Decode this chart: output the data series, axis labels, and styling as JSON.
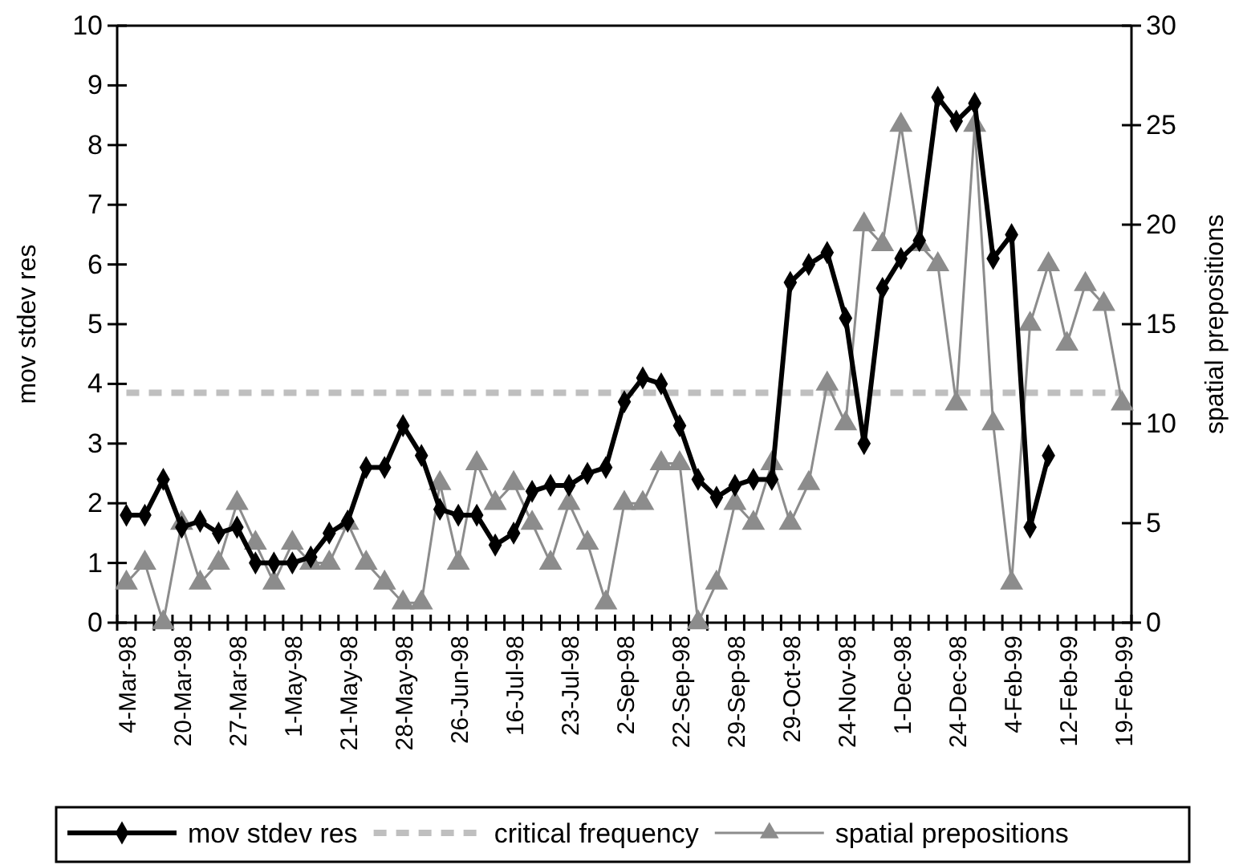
{
  "chart_data": {
    "type": "line",
    "ylabel": "mov stdev res",
    "y2label": "spatial prepositions",
    "categories": [
      "4-Mar-98",
      null,
      null,
      "20-Mar-98",
      null,
      null,
      "27-Mar-98",
      null,
      null,
      "1-May-98",
      null,
      null,
      "21-May-98",
      null,
      null,
      "28-May-98",
      null,
      null,
      "26-Jun-98",
      null,
      null,
      "16-Jul-98",
      null,
      null,
      "23-Jul-98",
      null,
      null,
      "2-Sep-98",
      null,
      null,
      "22-Sep-98",
      null,
      null,
      "29-Sep-98",
      null,
      null,
      "29-Oct-98",
      null,
      null,
      "24-Nov-98",
      null,
      null,
      "1-Dec-98",
      null,
      null,
      "24-Dec-98",
      null,
      null,
      "4-Feb-99",
      null,
      null,
      "12-Feb-99",
      null,
      null,
      "19-Feb-99"
    ],
    "series": [
      {
        "name": "mov stdev res",
        "color": "#000000",
        "marker": "diamond",
        "values": [
          1.8,
          1.8,
          2.4,
          1.6,
          1.7,
          1.5,
          1.6,
          1.0,
          1.0,
          1.0,
          1.1,
          1.5,
          1.7,
          2.6,
          2.6,
          3.3,
          2.8,
          1.9,
          1.8,
          1.8,
          1.3,
          1.5,
          2.2,
          2.3,
          2.3,
          2.5,
          2.6,
          3.7,
          4.1,
          4.0,
          3.3,
          2.4,
          2.1,
          2.3,
          2.4,
          2.4,
          5.7,
          6.0,
          6.2,
          5.1,
          3.0,
          5.6,
          6.1,
          6.4,
          8.8,
          8.4,
          8.7,
          6.1,
          6.5,
          1.6,
          2.8,
          null,
          null,
          null,
          null
        ]
      },
      {
        "name": "spatial prepositions",
        "color": "#8c8c8c",
        "marker": "triangle",
        "axis": "y2",
        "values": [
          2,
          3,
          0,
          5,
          2,
          3,
          6,
          4,
          2,
          4,
          3,
          3,
          5,
          3,
          2,
          1,
          1,
          7,
          3,
          8,
          6,
          7,
          5,
          3,
          6,
          4,
          1,
          6,
          6,
          8,
          8,
          0,
          2,
          6,
          5,
          8,
          5,
          7,
          12,
          10,
          20,
          19,
          25,
          19,
          18,
          11,
          25,
          10,
          2,
          15,
          18,
          14,
          17,
          16,
          11
        ]
      }
    ],
    "ref_lines": [
      {
        "axis": "y",
        "value": 3.85,
        "label": "critical frequency",
        "color": "#bfbfbf",
        "line_style": "dashed"
      }
    ],
    "ylim": [
      0,
      10
    ],
    "yticks": [
      0,
      1,
      2,
      3,
      4,
      5,
      6,
      7,
      8,
      9,
      10
    ],
    "y2lim": [
      0,
      30
    ],
    "y2ticks": [
      0,
      5,
      10,
      15,
      20,
      25,
      30
    ],
    "grid": false,
    "legend": "bottom"
  }
}
